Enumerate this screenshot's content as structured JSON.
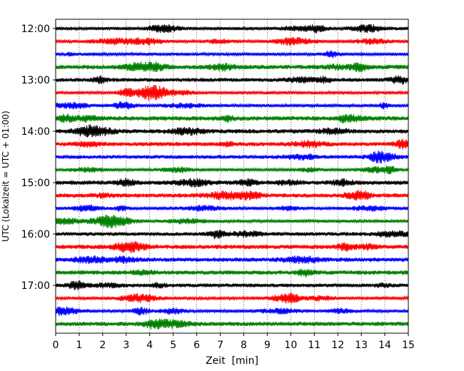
{
  "chart_data": {
    "type": "line",
    "subtype": "helicorder",
    "title": "",
    "xlabel": "Zeit  [min]",
    "ylabel": "UTC (Lokalzeit = UTC + 01:00)",
    "xlim": [
      0,
      15
    ],
    "x_ticks": [
      "0",
      "1",
      "2",
      "3",
      "4",
      "5",
      "6",
      "7",
      "8",
      "9",
      "10",
      "11",
      "12",
      "13",
      "14",
      "15"
    ],
    "y_ticks": [
      "12:00",
      "13:00",
      "14:00",
      "15:00",
      "16:00",
      "17:00"
    ],
    "grid": "vertical dotted lines at each minute",
    "trace_colors": [
      "#000000",
      "#ff0000",
      "#0000ff",
      "#008000"
    ],
    "trace_start_times": [
      "12:00",
      "12:15",
      "12:30",
      "12:45",
      "13:00",
      "13:15",
      "13:30",
      "13:45",
      "14:00",
      "14:15",
      "14:30",
      "14:45",
      "15:00",
      "15:15",
      "15:30",
      "15:45",
      "16:00",
      "16:15",
      "16:30",
      "16:45",
      "17:00",
      "17:15",
      "17:30",
      "17:45"
    ],
    "trace_minutes_per_line": 15
  }
}
